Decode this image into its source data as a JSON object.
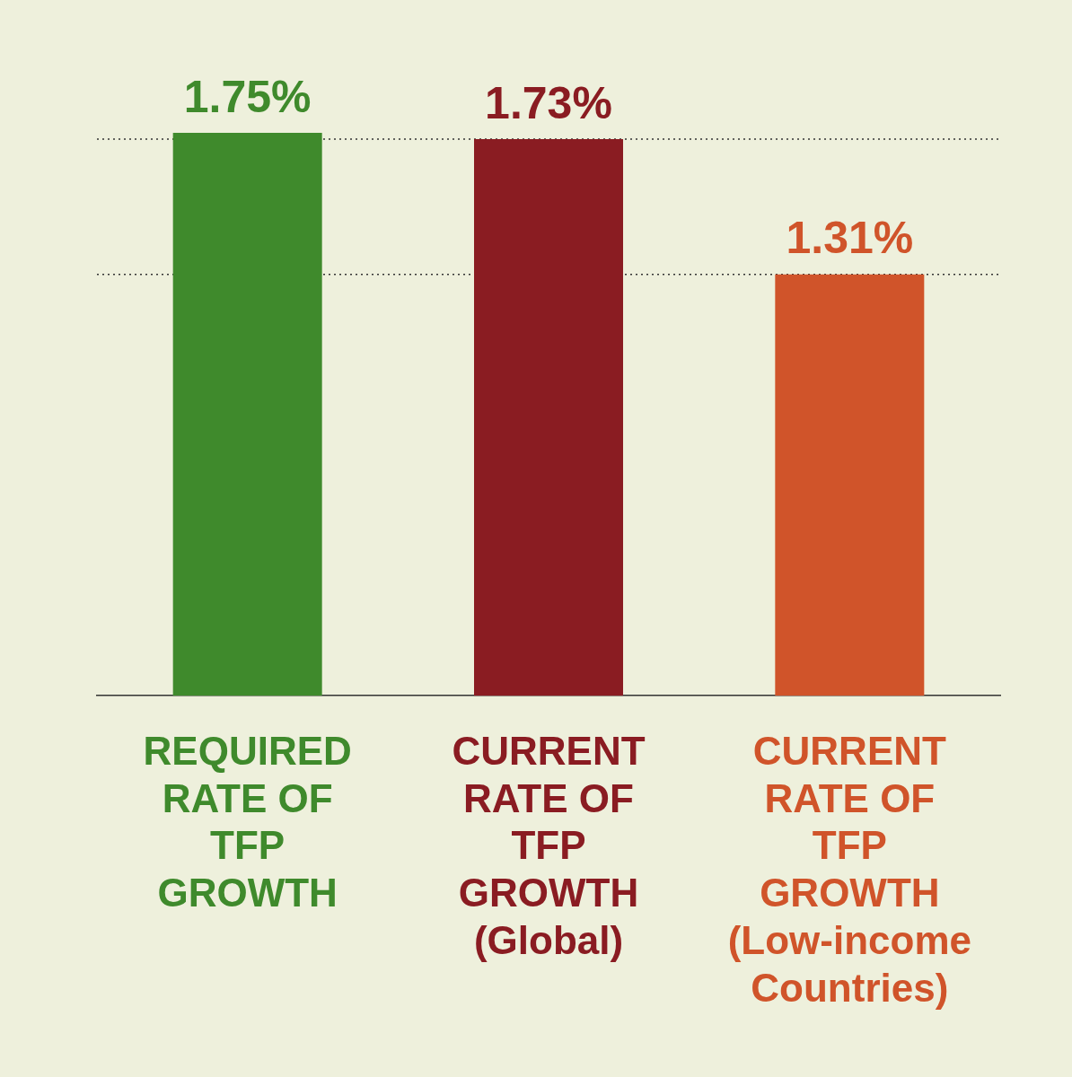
{
  "chart_data": {
    "type": "bar",
    "categories": [
      "REQUIRED RATE OF TFP GROWTH",
      "CURRENT RATE OF TFP GROWTH (Global)",
      "CURRENT RATE OF TFP GROWTH (Low-income Countries)"
    ],
    "values": [
      1.75,
      1.73,
      1.31
    ],
    "colors": [
      "#3f8a2c",
      "#8a1c22",
      "#d0542a"
    ],
    "value_labels": [
      "1.75%",
      "1.73%",
      "1.31%"
    ],
    "ref_lines": [
      {
        "axis": "y",
        "value": 1.73,
        "line_style": "dotted",
        "color": "#333333"
      },
      {
        "axis": "y",
        "value": 1.31,
        "line_style": "dotted",
        "color": "#333333"
      }
    ],
    "tick_labels": "x"
  }
}
